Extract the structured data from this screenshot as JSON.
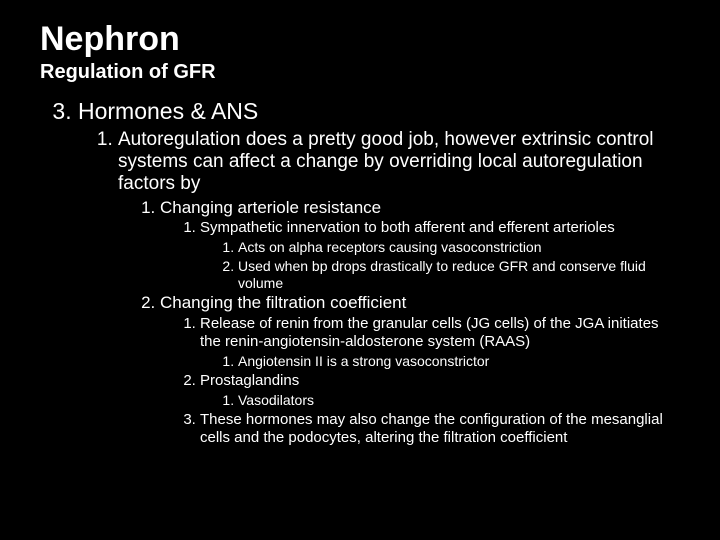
{
  "title": "Nephron",
  "subtitle": "Regulation of GFR",
  "l1_start": 3,
  "l1_0": "Hormones & ANS",
  "l2_0": "Autoregulation does a pretty good job, however extrinsic control systems can affect a change by overriding local autoregulation factors by",
  "l3_0": "Changing arteriole resistance",
  "l4_0": "Sympathetic innervation to both afferent and efferent arterioles",
  "l5_0": "Acts on alpha receptors causing vasoconstriction",
  "l5_1": "Used when bp drops drastically to reduce GFR and conserve fluid volume",
  "l3_1": "Changing the filtration coefficient",
  "l4_1": "Release of renin from the granular cells (JG cells) of the JGA initiates the renin-angiotensin-aldosterone system (RAAS)",
  "l5_2": "Angiotensin II is a strong vasoconstrictor",
  "l4_2": "Prostaglandins",
  "l5_3": "Vasodilators",
  "l4_3": "These hormones may also change the configuration of the mesanglial cells and the podocytes, altering the filtration coefficient",
  "colors": {
    "background": "#000000",
    "text": "#ffffff"
  },
  "font_family": "Arial"
}
